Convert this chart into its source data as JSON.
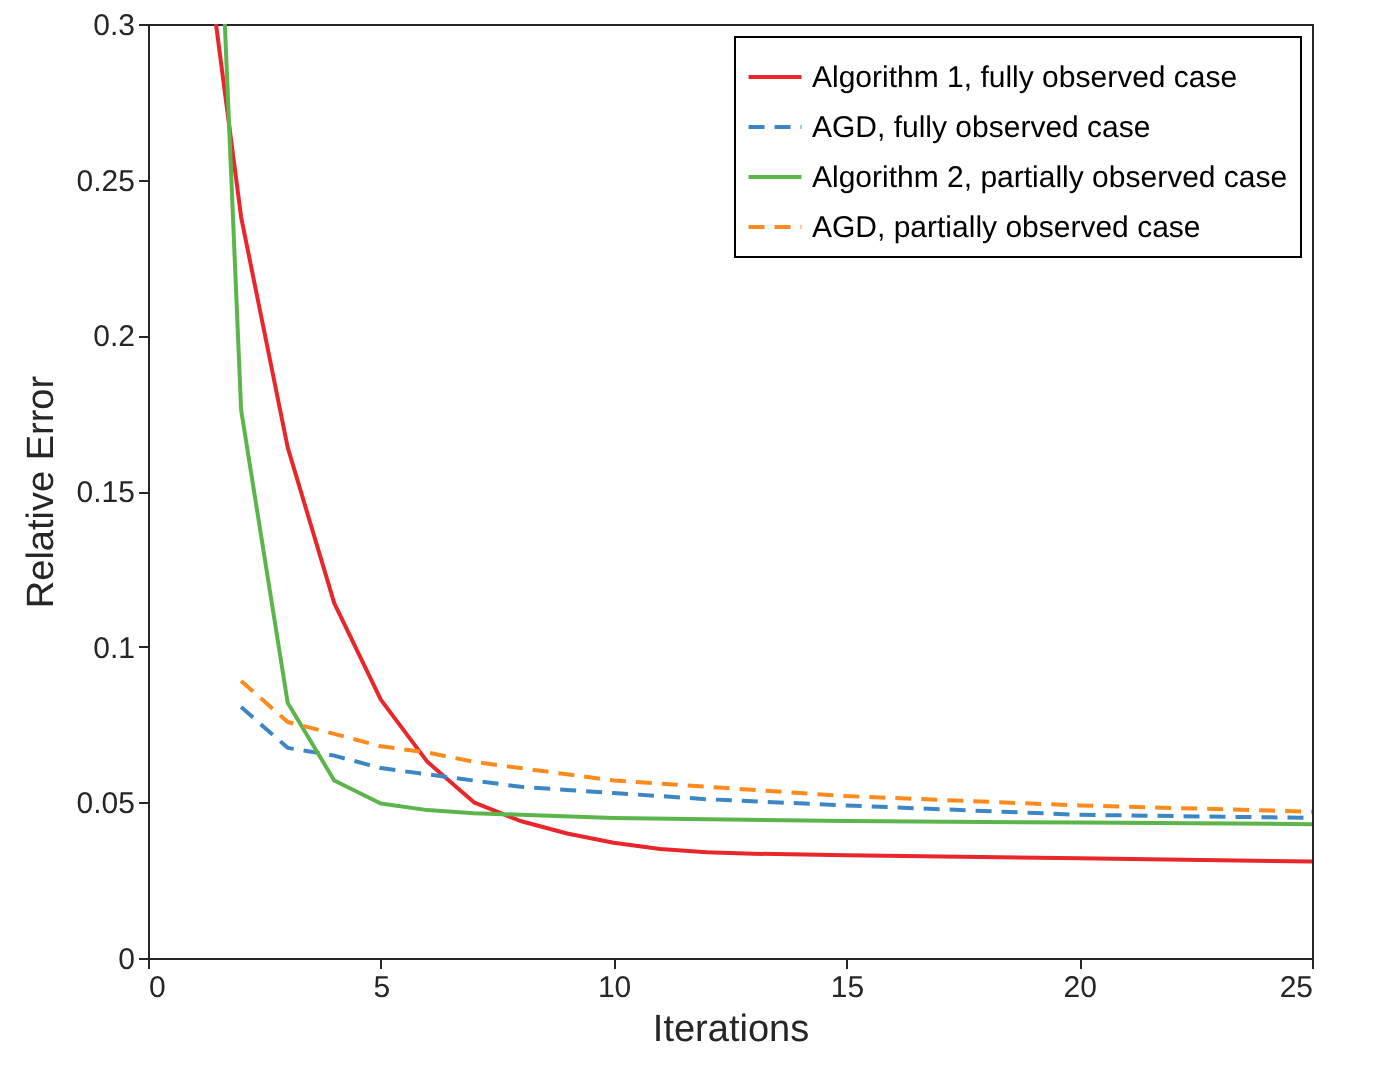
{
  "chart_data": {
    "type": "line",
    "xlabel": "Iterations",
    "ylabel": "Relative Error",
    "xlim": [
      0,
      25
    ],
    "ylim": [
      0,
      0.3
    ],
    "xticks": [
      0,
      5,
      10,
      15,
      20,
      25
    ],
    "yticks": [
      0,
      0.05,
      0.1,
      0.15,
      0.2,
      0.25,
      0.3
    ],
    "grid": false,
    "legend": "top right",
    "marker": "none",
    "series": [
      {
        "name": "Algorithm 1, fully observed case",
        "color": "#e8262b",
        "line_style": "solid",
        "x": [
          1.46,
          2,
          3,
          4,
          5,
          6,
          7,
          8,
          9,
          10,
          11,
          12,
          13,
          15,
          20,
          25
        ],
        "values": [
          0.3,
          0.238,
          0.164,
          0.114,
          0.083,
          0.063,
          0.05,
          0.044,
          0.04,
          0.037,
          0.035,
          0.034,
          0.0335,
          0.033,
          0.032,
          0.031
        ]
      },
      {
        "name": "AGD, fully observed case",
        "color": "#3d86c6",
        "line_style": "dashed",
        "x": [
          2,
          3,
          4,
          5,
          6,
          7,
          8,
          9,
          10,
          12,
          15,
          20,
          25
        ],
        "values": [
          0.0806,
          0.0675,
          0.065,
          0.061,
          0.059,
          0.057,
          0.055,
          0.054,
          0.053,
          0.051,
          0.049,
          0.046,
          0.045
        ]
      },
      {
        "name": "Algorithm 2, partially observed case",
        "color": "#5cb54a",
        "line_style": "solid",
        "x": [
          1.65,
          2,
          3,
          4,
          5,
          6,
          7,
          8,
          10,
          15,
          20,
          25
        ],
        "values": [
          0.3,
          0.176,
          0.082,
          0.057,
          0.0496,
          0.0475,
          0.0465,
          0.046,
          0.045,
          0.044,
          0.0435,
          0.043
        ]
      },
      {
        "name": "AGD, partially observed case",
        "color": "#fd8a1c",
        "line_style": "dashed",
        "x": [
          2,
          3,
          4,
          5,
          6,
          7,
          8,
          9,
          10,
          12,
          15,
          20,
          25
        ],
        "values": [
          0.089,
          0.0758,
          0.072,
          0.068,
          0.066,
          0.063,
          0.061,
          0.059,
          0.057,
          0.055,
          0.052,
          0.049,
          0.047
        ]
      }
    ]
  }
}
